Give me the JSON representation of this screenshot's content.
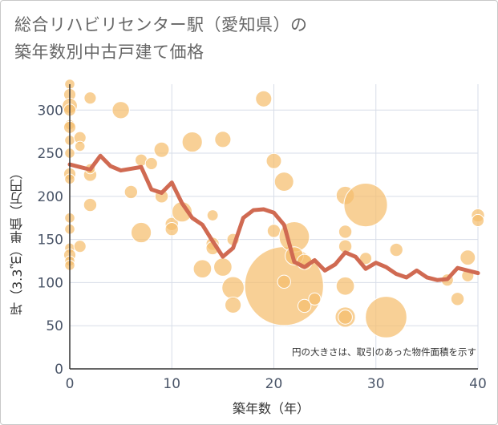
{
  "chart_data": {
    "type": "scatter",
    "title_lines": [
      "総合リハビリセンター駅（愛知県）の",
      "築年数別中古戸建て価格"
    ],
    "xlabel": "築年数（年）",
    "ylabel": "坪（3.3㎡）単価（万円）",
    "annotation": "円の大きさは、取引のあった物件面積を示す",
    "xlim": [
      0,
      40
    ],
    "ylim": [
      0,
      330
    ],
    "x_ticks": [
      0,
      10,
      20,
      30,
      40
    ],
    "y_ticks": [
      0,
      50,
      100,
      150,
      200,
      250,
      300
    ],
    "colors": {
      "bubble": "#f5be6e",
      "line": "#d06a52",
      "grid": "#d7dde8",
      "axis_text": "#4a5568"
    },
    "bubbles": [
      {
        "x": 0,
        "y": 330,
        "s": 1
      },
      {
        "x": 0,
        "y": 318,
        "s": 1.2
      },
      {
        "x": 0,
        "y": 305,
        "s": 1.5
      },
      {
        "x": 0,
        "y": 300,
        "s": 1.2
      },
      {
        "x": 0,
        "y": 283,
        "s": 1
      },
      {
        "x": 0,
        "y": 280,
        "s": 1.2
      },
      {
        "x": 0,
        "y": 265,
        "s": 1
      },
      {
        "x": 0,
        "y": 250,
        "s": 1
      },
      {
        "x": 0,
        "y": 226,
        "s": 1.2
      },
      {
        "x": 0,
        "y": 220,
        "s": 1
      },
      {
        "x": 0,
        "y": 175,
        "s": 1
      },
      {
        "x": 0,
        "y": 162,
        "s": 1
      },
      {
        "x": 0,
        "y": 140,
        "s": 1
      },
      {
        "x": 0,
        "y": 132,
        "s": 1.2
      },
      {
        "x": 0,
        "y": 125,
        "s": 1
      },
      {
        "x": 0,
        "y": 120,
        "s": 1
      },
      {
        "x": 1,
        "y": 268,
        "s": 1.2
      },
      {
        "x": 1,
        "y": 258,
        "s": 1
      },
      {
        "x": 1,
        "y": 142,
        "s": 1.2
      },
      {
        "x": 2,
        "y": 314,
        "s": 1.2
      },
      {
        "x": 2,
        "y": 225,
        "s": 1.3
      },
      {
        "x": 2,
        "y": 232,
        "s": 1
      },
      {
        "x": 2,
        "y": 190,
        "s": 1.3
      },
      {
        "x": 5,
        "y": 300,
        "s": 1.7
      },
      {
        "x": 6,
        "y": 205,
        "s": 1.3
      },
      {
        "x": 7,
        "y": 242,
        "s": 1.2
      },
      {
        "x": 7,
        "y": 158,
        "s": 2
      },
      {
        "x": 8,
        "y": 238,
        "s": 1.2
      },
      {
        "x": 9,
        "y": 254,
        "s": 1.5
      },
      {
        "x": 9,
        "y": 200,
        "s": 1.3
      },
      {
        "x": 10,
        "y": 168,
        "s": 1.3
      },
      {
        "x": 10,
        "y": 162,
        "s": 1.3
      },
      {
        "x": 11,
        "y": 182,
        "s": 2
      },
      {
        "x": 12,
        "y": 263,
        "s": 2
      },
      {
        "x": 13,
        "y": 116,
        "s": 1.8
      },
      {
        "x": 14,
        "y": 178,
        "s": 1.1
      },
      {
        "x": 14,
        "y": 145,
        "s": 1.3
      },
      {
        "x": 14,
        "y": 140,
        "s": 1.3
      },
      {
        "x": 15,
        "y": 266,
        "s": 1.6
      },
      {
        "x": 15,
        "y": 118,
        "s": 1.8
      },
      {
        "x": 16,
        "y": 150,
        "s": 1.2
      },
      {
        "x": 16,
        "y": 94,
        "s": 2.2
      },
      {
        "x": 16,
        "y": 74,
        "s": 1.6
      },
      {
        "x": 19,
        "y": 313,
        "s": 1.6
      },
      {
        "x": 20,
        "y": 241,
        "s": 1.5
      },
      {
        "x": 20,
        "y": 160,
        "s": 1.3
      },
      {
        "x": 21,
        "y": 217,
        "s": 1.9
      },
      {
        "x": 21,
        "y": 96,
        "s": 7.8
      },
      {
        "x": 21,
        "y": 101,
        "s": 1.3
      },
      {
        "x": 22,
        "y": 153,
        "s": 3
      },
      {
        "x": 22,
        "y": 131,
        "s": 1.8
      },
      {
        "x": 23,
        "y": 124,
        "s": 1.5
      },
      {
        "x": 23,
        "y": 73,
        "s": 1.3
      },
      {
        "x": 24,
        "y": 81,
        "s": 1.2
      },
      {
        "x": 27,
        "y": 201,
        "s": 1.8
      },
      {
        "x": 27,
        "y": 159,
        "s": 1.3
      },
      {
        "x": 27,
        "y": 96,
        "s": 1.8
      },
      {
        "x": 27,
        "y": 60,
        "s": 2
      },
      {
        "x": 27,
        "y": 60,
        "s": 1.4
      },
      {
        "x": 27,
        "y": 142,
        "s": 1.3
      },
      {
        "x": 29,
        "y": 190,
        "s": 4.3
      },
      {
        "x": 29,
        "y": 128,
        "s": 1.2
      },
      {
        "x": 31,
        "y": 60,
        "s": 4.1
      },
      {
        "x": 32,
        "y": 138,
        "s": 1.3
      },
      {
        "x": 37,
        "y": 103,
        "s": 1.2
      },
      {
        "x": 38,
        "y": 81,
        "s": 1.3
      },
      {
        "x": 39,
        "y": 129,
        "s": 1.5
      },
      {
        "x": 39,
        "y": 108,
        "s": 1.2
      },
      {
        "x": 40,
        "y": 178,
        "s": 1.3
      },
      {
        "x": 40,
        "y": 172,
        "s": 1.2
      }
    ],
    "trend_line": {
      "x": [
        0,
        1,
        2,
        3,
        4,
        5,
        6,
        7,
        8,
        9,
        10,
        11,
        12,
        13,
        14,
        15,
        16,
        17,
        18,
        19,
        20,
        21,
        22,
        23,
        24,
        25,
        26,
        27,
        28,
        29,
        30,
        31,
        32,
        33,
        34,
        35,
        36,
        37,
        38,
        39,
        40
      ],
      "y": [
        237,
        234,
        231,
        247,
        235,
        230,
        232,
        234,
        208,
        204,
        216,
        192,
        175,
        167,
        148,
        130,
        140,
        175,
        184,
        185,
        181,
        167,
        124,
        118,
        126,
        114,
        121,
        135,
        130,
        116,
        123,
        118,
        110,
        106,
        114,
        106,
        103,
        104,
        117,
        114,
        111
      ]
    }
  }
}
